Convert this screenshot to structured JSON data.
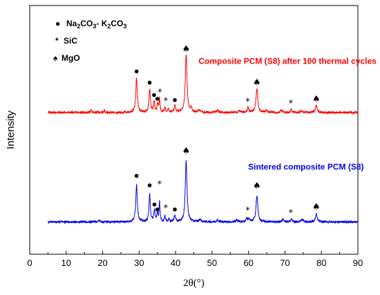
{
  "chart_data": {
    "type": "line",
    "xlabel": "2θ(°)",
    "ylabel": "Intensity",
    "xlim": [
      0,
      90
    ],
    "ylim": [
      0,
      100
    ],
    "xticks": [
      0,
      10,
      20,
      30,
      40,
      50,
      60,
      70,
      80,
      90
    ],
    "xtick_labels": [
      "0",
      "10",
      "20",
      "30",
      "40",
      "50",
      "60",
      "70",
      "80",
      "90"
    ],
    "grid": false,
    "legend": {
      "placement": "top-left",
      "entries": [
        {
          "symbol": "●",
          "name": "Na2CO3- K2CO3",
          "text_main": "Na",
          "sub1": "2",
          "text_mid1": "CO",
          "sub2": "3",
          "text_mid2": "- K",
          "sub3": "2",
          "text_mid3": "CO",
          "sub4": "3"
        },
        {
          "symbol": "*",
          "name": "SiC"
        },
        {
          "symbol": "♠",
          "name": "MgO"
        }
      ]
    },
    "series": [
      {
        "name": "Composite PCM (S8) after 100 thermal cycles",
        "color": "#ff0000",
        "baseline": 57,
        "peaks": [
          {
            "x": 16.8,
            "h": 1.0,
            "w": 0.15
          },
          {
            "x": 20.5,
            "h": 1.0,
            "w": 0.15
          },
          {
            "x": 29.3,
            "h": 14.0,
            "w": 0.25
          },
          {
            "x": 32.9,
            "h": 9.5,
            "w": 0.22
          },
          {
            "x": 34.1,
            "h": 4.5,
            "w": 0.2
          },
          {
            "x": 35.1,
            "h": 3.5,
            "w": 0.18
          },
          {
            "x": 35.6,
            "h": 5.5,
            "w": 0.15
          },
          {
            "x": 37.1,
            "h": 2.0,
            "w": 0.18
          },
          {
            "x": 38.0,
            "h": 1.5,
            "w": 0.18
          },
          {
            "x": 39.8,
            "h": 2.5,
            "w": 0.25
          },
          {
            "x": 42.9,
            "h": 23.5,
            "w": 0.28
          },
          {
            "x": 44.3,
            "h": 2.0,
            "w": 0.2
          },
          {
            "x": 46.5,
            "h": 1.0,
            "w": 0.3
          },
          {
            "x": 51.5,
            "h": 0.8,
            "w": 0.3
          },
          {
            "x": 57.5,
            "h": 0.8,
            "w": 0.3
          },
          {
            "x": 59.9,
            "h": 2.3,
            "w": 0.2
          },
          {
            "x": 62.3,
            "h": 9.5,
            "w": 0.3
          },
          {
            "x": 65.0,
            "h": 0.8,
            "w": 0.3
          },
          {
            "x": 69.0,
            "h": 0.8,
            "w": 0.3
          },
          {
            "x": 71.7,
            "h": 1.3,
            "w": 0.2
          },
          {
            "x": 74.6,
            "h": 0.8,
            "w": 0.3
          },
          {
            "x": 78.6,
            "h": 2.8,
            "w": 0.28
          }
        ],
        "markers": [
          {
            "type": "circle",
            "x": 29.3,
            "y": 73.5
          },
          {
            "type": "circle",
            "x": 32.9,
            "y": 69.0
          },
          {
            "type": "circle",
            "x": 34.1,
            "y": 64.0
          },
          {
            "type": "circle",
            "x": 35.0,
            "y": 62.5
          },
          {
            "type": "star",
            "x": 35.7,
            "y": 65.0
          },
          {
            "type": "star",
            "x": 37.3,
            "y": 61.5
          },
          {
            "type": "circle",
            "x": 39.8,
            "y": 62.0
          },
          {
            "type": "spade",
            "x": 42.9,
            "y": 82.5
          },
          {
            "type": "star",
            "x": 59.8,
            "y": 61.3
          },
          {
            "type": "spade",
            "x": 62.3,
            "y": 69.0
          },
          {
            "type": "star",
            "x": 71.6,
            "y": 60.5
          },
          {
            "type": "spade",
            "x": 78.6,
            "y": 62.3
          }
        ],
        "label_x": 46.3,
        "label_y": 76.5
      },
      {
        "name": "Sintered composite PCM (S8)",
        "color": "#0000e6",
        "baseline": 13,
        "peaks": [
          {
            "x": 19.0,
            "h": 0.8,
            "w": 0.2
          },
          {
            "x": 29.3,
            "h": 15.0,
            "w": 0.25
          },
          {
            "x": 32.9,
            "h": 11.0,
            "w": 0.22
          },
          {
            "x": 34.2,
            "h": 4.5,
            "w": 0.2
          },
          {
            "x": 35.0,
            "h": 3.5,
            "w": 0.18
          },
          {
            "x": 35.6,
            "h": 8.0,
            "w": 0.15
          },
          {
            "x": 37.1,
            "h": 2.5,
            "w": 0.18
          },
          {
            "x": 38.2,
            "h": 1.0,
            "w": 0.18
          },
          {
            "x": 39.8,
            "h": 2.5,
            "w": 0.25
          },
          {
            "x": 42.9,
            "h": 24.5,
            "w": 0.28
          },
          {
            "x": 46.7,
            "h": 1.0,
            "w": 0.3
          },
          {
            "x": 51.5,
            "h": 0.8,
            "w": 0.3
          },
          {
            "x": 56.8,
            "h": 0.8,
            "w": 0.3
          },
          {
            "x": 59.5,
            "h": 1.5,
            "w": 0.2
          },
          {
            "x": 60.1,
            "h": 1.3,
            "w": 0.2
          },
          {
            "x": 62.3,
            "h": 10.5,
            "w": 0.3
          },
          {
            "x": 69.5,
            "h": 1.0,
            "w": 0.3
          },
          {
            "x": 71.8,
            "h": 1.2,
            "w": 0.2
          },
          {
            "x": 74.8,
            "h": 1.0,
            "w": 0.3
          },
          {
            "x": 78.6,
            "h": 3.0,
            "w": 0.28
          }
        ],
        "markers": [
          {
            "type": "circle",
            "x": 29.3,
            "y": 31.5
          },
          {
            "type": "circle",
            "x": 32.9,
            "y": 27.7
          },
          {
            "type": "star",
            "x": 35.6,
            "y": 28.0
          },
          {
            "type": "circle",
            "x": 34.2,
            "y": 20.0
          },
          {
            "type": "circle",
            "x": 35.0,
            "y": 18.0
          },
          {
            "type": "star",
            "x": 37.3,
            "y": 18.5
          },
          {
            "type": "circle",
            "x": 39.8,
            "y": 18.0
          },
          {
            "type": "spade",
            "x": 42.9,
            "y": 41.5
          },
          {
            "type": "star",
            "x": 59.8,
            "y": 17.5
          },
          {
            "type": "spade",
            "x": 62.3,
            "y": 27.5
          },
          {
            "type": "star",
            "x": 71.6,
            "y": 16.5
          },
          {
            "type": "spade",
            "x": 78.6,
            "y": 19.0
          }
        ],
        "label_x": 59.9,
        "label_y": 34.0
      }
    ]
  }
}
